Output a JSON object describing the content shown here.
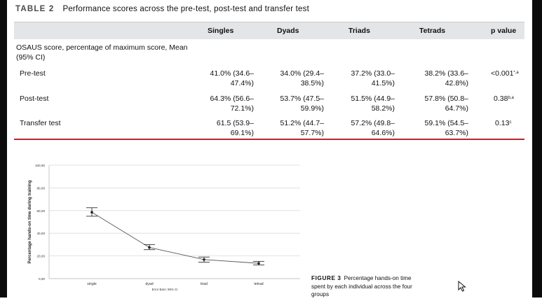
{
  "table": {
    "label": "TABLE 2",
    "title": "Performance scores across the pre-test, post-test and transfer test",
    "columns": [
      "Singles",
      "Dyads",
      "Triads",
      "Tetrads",
      "p value"
    ],
    "section_label_line1": "OSAUS score, percentage of maximum score, Mean",
    "section_label_line2": "(95% CI)",
    "rows": [
      {
        "label": "Pre-test",
        "singles": [
          "41.0% (34.6–",
          "47.4%)"
        ],
        "dyads": [
          "34.0% (29.4–",
          "38.5%)"
        ],
        "triads": [
          "37.2% (33.0–",
          "41.5%)"
        ],
        "tetrads": [
          "38.2% (33.6–",
          "42.8%)"
        ],
        "p": "<0.001",
        "p_sup": "*,a"
      },
      {
        "label": "Post-test",
        "singles": [
          "64.3% (56.6–",
          "72.1%)"
        ],
        "dyads": [
          "53.7% (47.5–",
          "59.9%)"
        ],
        "triads": [
          "51.5% (44.9–",
          "58.2%)"
        ],
        "tetrads": [
          "57.8% (50.8–",
          "64.7%)"
        ],
        "p": "0.38",
        "p_sup": "b,a"
      },
      {
        "label": "Transfer test",
        "singles": [
          "61.5 (53.9–",
          "69.1%)"
        ],
        "dyads": [
          "51.2% (44.7–",
          "57.7%)"
        ],
        "triads": [
          "57.2% (49.8–",
          "64.6%)"
        ],
        "tetrads": [
          "59.1% (54.5–",
          "63.7%)"
        ],
        "p": "0.13",
        "p_sup": "c"
      }
    ]
  },
  "figure": {
    "label": "FIGURE 3",
    "caption": "Percentage hands-on time spent by each individual across the four groups",
    "footnote": "Error Bars: 95% CI"
  },
  "colors": {
    "rule": "#b6272e",
    "header_band": "#e4e5e6"
  },
  "chart_data": {
    "type": "line",
    "x": [
      "single",
      "dyad",
      "triad",
      "tetrad"
    ],
    "y": [
      58.5,
      27.5,
      16.8,
      13.5
    ],
    "error_low": [
      55.0,
      25.5,
      14.5,
      12.0
    ],
    "error_high": [
      62.5,
      30.0,
      19.0,
      15.2
    ],
    "ylabel": "Percentage hands-on time during training",
    "xlabel": "",
    "yticks": [
      "0,00",
      "20,00",
      "40,00",
      "60,00",
      "80,00",
      "100,00"
    ],
    "ylim": [
      0,
      100
    ],
    "grid": true,
    "error_bars": "95% CI"
  }
}
